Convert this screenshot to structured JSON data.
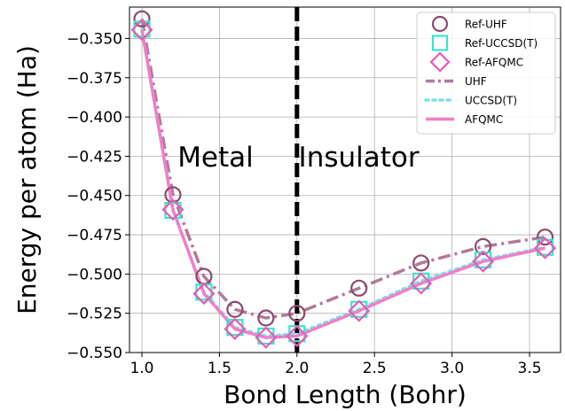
{
  "chart_data": {
    "type": "line",
    "title": "",
    "xlabel": "Bond Length (Bohr)",
    "ylabel": "Energy per atom (Ha)",
    "xlim": [
      0.92,
      3.7
    ],
    "ylim": [
      -0.55,
      -0.33
    ],
    "x_ticks": [
      1.0,
      1.5,
      2.0,
      2.5,
      3.0,
      3.5
    ],
    "x_tick_labels": [
      "1.0",
      "1.5",
      "2.0",
      "2.5",
      "3.0",
      "3.5"
    ],
    "y_ticks": [
      -0.55,
      -0.525,
      -0.5,
      -0.475,
      -0.45,
      -0.425,
      -0.4,
      -0.375,
      -0.35
    ],
    "y_tick_labels": [
      "−0.550",
      "−0.525",
      "−0.500",
      "−0.475",
      "−0.450",
      "−0.425",
      "−0.400",
      "−0.375",
      "−0.350"
    ],
    "grid": true,
    "legend_position": "top-right",
    "series": [
      {
        "name": "Ref-UHF",
        "kind": "marker",
        "marker": "circle",
        "color": "#8b4a6e",
        "x": [
          1.0,
          1.2,
          1.4,
          1.6,
          1.8,
          2.0,
          2.4,
          2.8,
          3.2,
          3.6
        ],
        "y": [
          -0.3375,
          -0.4495,
          -0.5015,
          -0.5225,
          -0.528,
          -0.525,
          -0.509,
          -0.493,
          -0.4825,
          -0.4765
        ]
      },
      {
        "name": "Ref-UCCSD(T)",
        "kind": "marker",
        "marker": "square",
        "color": "#3de3c8",
        "x": [
          1.0,
          1.2,
          1.4,
          1.6,
          1.8,
          2.0,
          2.4,
          2.8,
          3.2,
          3.6
        ],
        "y": [
          -0.344,
          -0.4595,
          -0.5115,
          -0.534,
          -0.5395,
          -0.538,
          -0.5225,
          -0.5045,
          -0.491,
          -0.483
        ]
      },
      {
        "name": "Ref-AFQMC",
        "kind": "marker",
        "marker": "diamond",
        "color": "#e85ab8",
        "x": [
          1.0,
          1.2,
          1.4,
          1.6,
          1.8,
          2.0,
          2.4,
          2.8,
          3.2,
          3.6
        ],
        "y": [
          -0.3445,
          -0.459,
          -0.5125,
          -0.535,
          -0.5405,
          -0.5395,
          -0.5235,
          -0.506,
          -0.492,
          -0.4835
        ]
      },
      {
        "name": "UHF",
        "kind": "line",
        "dash": "dashdot",
        "color": "#b07a99",
        "x": [
          1.0,
          1.2,
          1.4,
          1.6,
          1.8,
          2.0,
          2.4,
          2.8,
          3.2,
          3.6
        ],
        "y": [
          -0.3375,
          -0.4495,
          -0.5015,
          -0.5225,
          -0.528,
          -0.525,
          -0.509,
          -0.493,
          -0.4825,
          -0.4765
        ]
      },
      {
        "name": "UCCSD(T)",
        "kind": "line",
        "dash": "dotted",
        "color": "#7ee0e0",
        "x": [
          1.0,
          1.2,
          1.4,
          1.6,
          1.8,
          2.0,
          2.4,
          2.8,
          3.2,
          3.6
        ],
        "y": [
          -0.344,
          -0.4595,
          -0.5115,
          -0.534,
          -0.5395,
          -0.538,
          -0.5225,
          -0.5045,
          -0.491,
          -0.483
        ]
      },
      {
        "name": "AFQMC",
        "kind": "line",
        "dash": "solid",
        "color": "#f07fcb",
        "x": [
          1.0,
          1.2,
          1.4,
          1.6,
          1.8,
          2.0,
          2.4,
          2.8,
          3.2,
          3.6
        ],
        "y": [
          -0.3445,
          -0.459,
          -0.5125,
          -0.535,
          -0.5405,
          -0.5395,
          -0.5235,
          -0.506,
          -0.492,
          -0.4835
        ]
      }
    ],
    "annotations": [
      {
        "text": "Metal",
        "x": 1.23,
        "y": -0.4315
      },
      {
        "text": "Insulator",
        "x": 2.01,
        "y": -0.4315
      }
    ],
    "vline": {
      "x": 2.0,
      "dash": "dashed",
      "color": "#000000"
    }
  }
}
